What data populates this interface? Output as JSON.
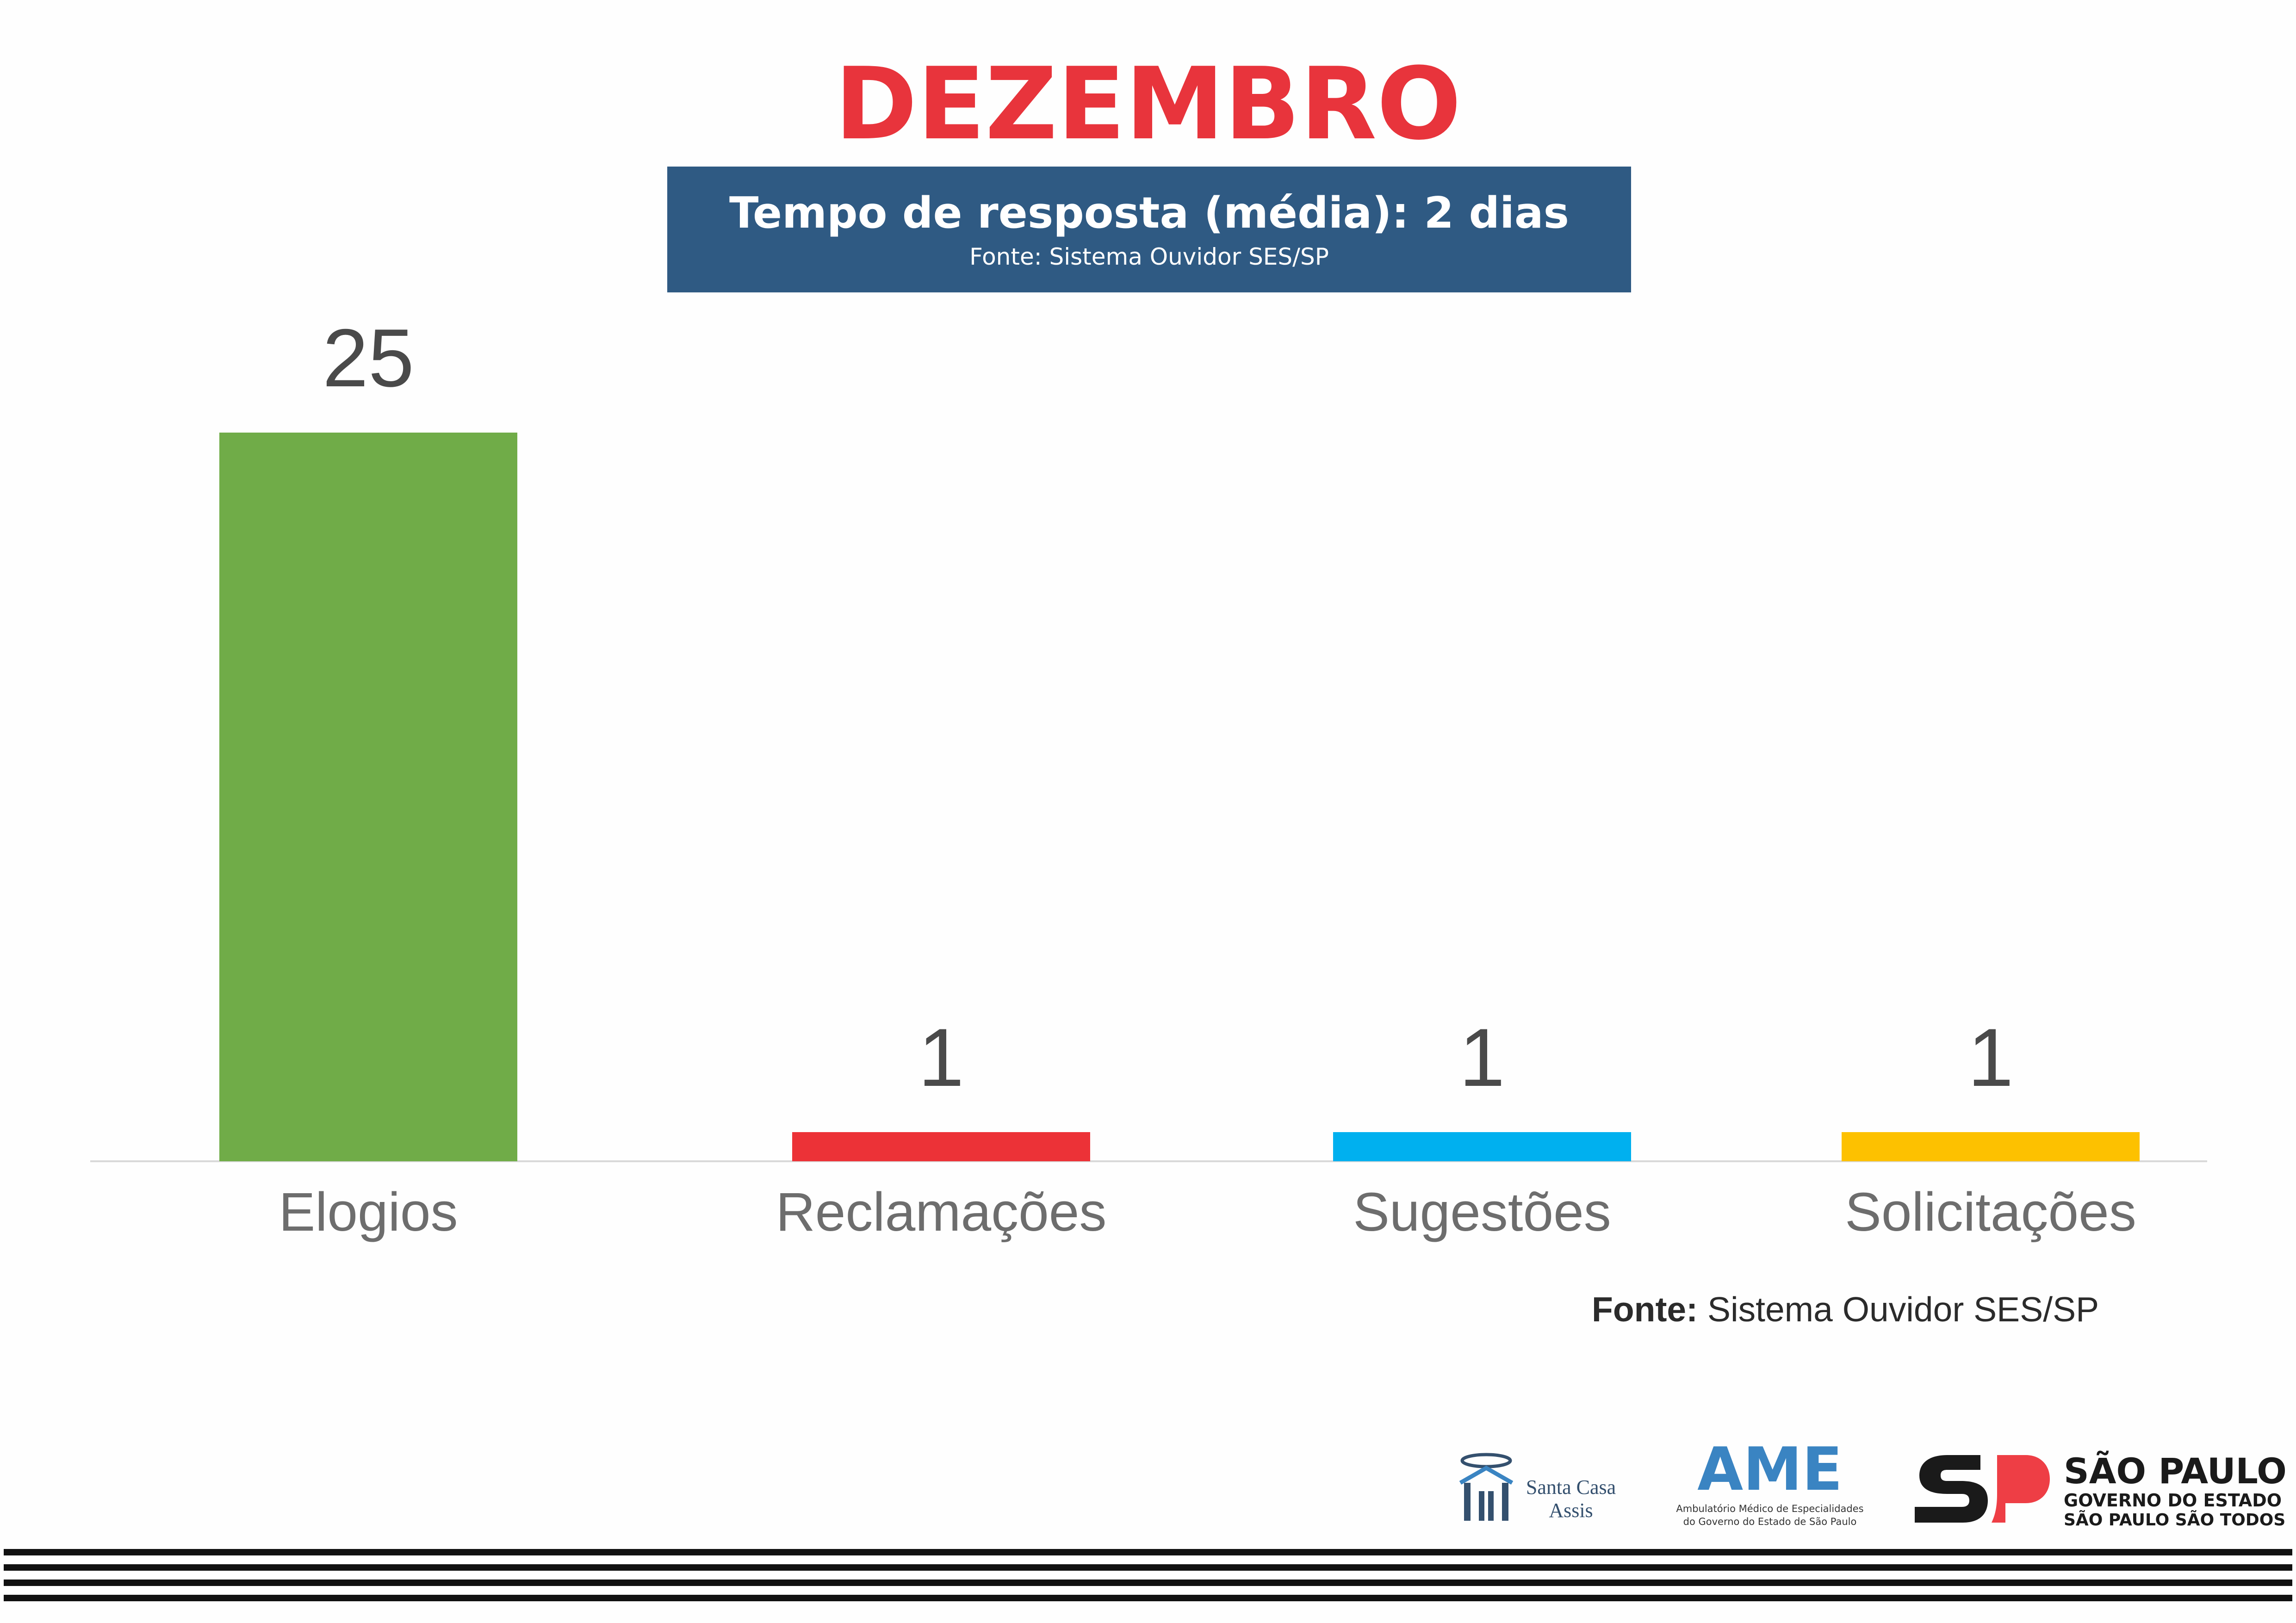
{
  "header": {
    "title": "DEZEMBRO",
    "title_color": "#e8343c",
    "subtitle": "Tempo de resposta (média): 2 dias",
    "subtitle_source": "Fonte: Sistema Ouvidor SES/SP",
    "subtitle_bg": "#2f5a83"
  },
  "chart_data": {
    "type": "bar",
    "categories": [
      "Elogios",
      "Reclamações",
      "Sugestões",
      "Solicitações"
    ],
    "values": [
      25,
      1,
      1,
      1
    ],
    "data_labels": [
      "25",
      "1",
      "1",
      "1"
    ],
    "colors": [
      "#70ac48",
      "#ec3237",
      "#00b0ef",
      "#fdc100"
    ],
    "title": "",
    "xlabel": "",
    "ylabel": "",
    "ylim": [
      0,
      25
    ],
    "grid": false,
    "legend": "none"
  },
  "footer": {
    "source_label": "Fonte:",
    "source_text": " Sistema Ouvidor SES/SP"
  },
  "logos": {
    "santa_casa_line1": "Santa Casa",
    "santa_casa_line2": "Assis",
    "ame_word": "AME",
    "ame_sub1": "Ambulatório Médico de Especialidades",
    "ame_sub2": "do Governo do Estado de São Paulo",
    "sp_line1": "SÃO PAULO",
    "sp_line2": "GOVERNO DO ESTADO",
    "sp_line3": "SÃO PAULO SÃO TODOS"
  }
}
